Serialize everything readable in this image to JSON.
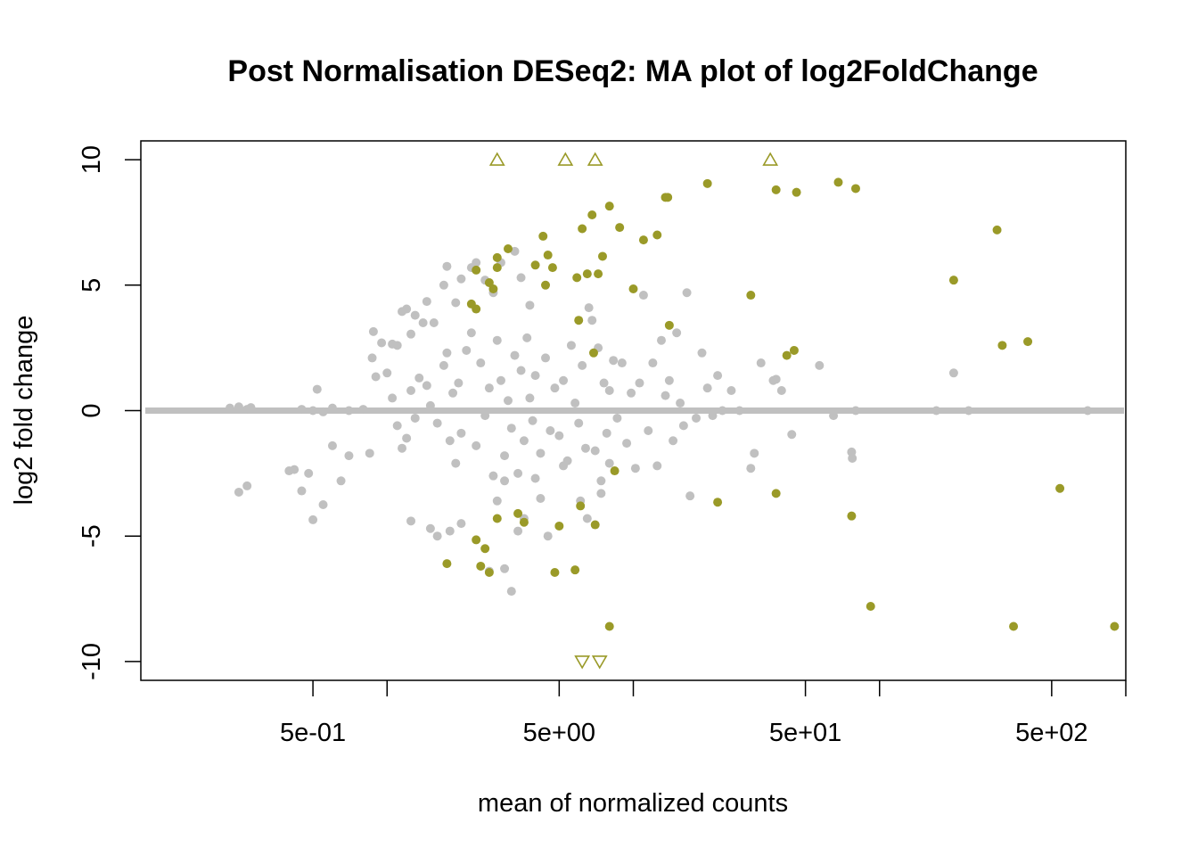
{
  "chart_data": {
    "type": "scatter",
    "title": "Post Normalisation DESeq2: MA plot of log2FoldChange",
    "xlabel": "mean of normalized counts",
    "ylabel": "log2 fold change",
    "x_scale": "log10",
    "xlim": [
      0.1,
      1000
    ],
    "ylim": [
      -10.75,
      10.75
    ],
    "x_ticks": [
      {
        "value": 0.5,
        "label": "5e-01"
      },
      {
        "value": 1,
        "label": ""
      },
      {
        "value": 5,
        "label": "5e+00"
      },
      {
        "value": 10,
        "label": ""
      },
      {
        "value": 50,
        "label": "5e+01"
      },
      {
        "value": 100,
        "label": ""
      },
      {
        "value": 500,
        "label": "5e+02"
      },
      {
        "value": 1000,
        "label": ""
      }
    ],
    "y_ticks": [
      {
        "value": 10,
        "label": "10"
      },
      {
        "value": 5,
        "label": "5"
      },
      {
        "value": 0,
        "label": "0"
      },
      {
        "value": -5,
        "label": "-5"
      },
      {
        "value": -10,
        "label": "-10"
      }
    ],
    "grid": false,
    "colors": {
      "not_significant": "#c0c0c0",
      "significant": "#9a9a28",
      "hline": "#c0c0c0"
    },
    "reference_line_y": 0,
    "series": [
      {
        "significance": "not_significant",
        "marker": "dot",
        "points": [
          [
            0.23,
            0.1
          ],
          [
            0.25,
            0.15
          ],
          [
            0.27,
            0.05
          ],
          [
            0.28,
            0.12
          ],
          [
            0.45,
            0.05
          ],
          [
            0.5,
            0.0
          ],
          [
            0.55,
            -0.05
          ],
          [
            0.6,
            0.1
          ],
          [
            0.7,
            0.0
          ],
          [
            0.8,
            0.05
          ],
          [
            0.52,
            0.85
          ],
          [
            0.48,
            -2.5
          ],
          [
            0.42,
            -2.35
          ],
          [
            0.45,
            -3.2
          ],
          [
            0.4,
            -2.4
          ],
          [
            0.25,
            -3.25
          ],
          [
            0.27,
            -3.0
          ],
          [
            0.5,
            -4.35
          ],
          [
            0.55,
            -3.75
          ],
          [
            0.6,
            -1.4
          ],
          [
            0.65,
            -2.8
          ],
          [
            0.7,
            -1.8
          ],
          [
            0.85,
            -1.7
          ],
          [
            0.9,
            1.35
          ],
          [
            0.95,
            2.7
          ],
          [
            0.88,
            3.15
          ],
          [
            0.87,
            2.1
          ],
          [
            1.05,
            2.65
          ],
          [
            1.1,
            2.6
          ],
          [
            1.15,
            3.95
          ],
          [
            1.2,
            4.05
          ],
          [
            1.25,
            3.05
          ],
          [
            1.3,
            3.8
          ],
          [
            1.4,
            3.5
          ],
          [
            1.45,
            4.35
          ],
          [
            1.55,
            3.5
          ],
          [
            1.75,
            5.75
          ],
          [
            1.7,
            5.0
          ],
          [
            1.9,
            4.3
          ],
          [
            2.0,
            5.25
          ],
          [
            2.2,
            5.7
          ],
          [
            2.3,
            5.9
          ],
          [
            2.5,
            5.2
          ],
          [
            2.7,
            4.7
          ],
          [
            2.9,
            5.9
          ],
          [
            3.3,
            6.35
          ],
          [
            3.5,
            5.3
          ],
          [
            3.8,
            4.2
          ],
          [
            1.0,
            1.5
          ],
          [
            1.05,
            0.5
          ],
          [
            1.1,
            -0.6
          ],
          [
            1.2,
            -1.1
          ],
          [
            1.3,
            -0.3
          ],
          [
            1.15,
            -1.5
          ],
          [
            1.25,
            0.8
          ],
          [
            1.35,
            1.3
          ],
          [
            1.45,
            1.0
          ],
          [
            1.5,
            0.2
          ],
          [
            1.6,
            -0.5
          ],
          [
            1.7,
            1.8
          ],
          [
            1.75,
            2.3
          ],
          [
            1.8,
            -1.2
          ],
          [
            1.85,
            0.7
          ],
          [
            1.9,
            -2.1
          ],
          [
            1.95,
            1.1
          ],
          [
            2.0,
            -0.9
          ],
          [
            2.1,
            2.4
          ],
          [
            2.2,
            3.1
          ],
          [
            2.3,
            -1.4
          ],
          [
            2.4,
            1.9
          ],
          [
            2.5,
            -0.2
          ],
          [
            2.6,
            0.9
          ],
          [
            2.7,
            -2.6
          ],
          [
            2.8,
            2.8
          ],
          [
            2.9,
            1.2
          ],
          [
            3.0,
            -1.8
          ],
          [
            3.1,
            0.4
          ],
          [
            3.2,
            -0.7
          ],
          [
            3.3,
            2.2
          ],
          [
            3.4,
            -2.5
          ],
          [
            3.5,
            1.6
          ],
          [
            3.6,
            -1.2
          ],
          [
            3.7,
            2.9
          ],
          [
            3.8,
            0.5
          ],
          [
            3.9,
            -0.4
          ],
          [
            4.0,
            1.4
          ],
          [
            4.2,
            -1.7
          ],
          [
            4.4,
            2.1
          ],
          [
            4.6,
            -0.8
          ],
          [
            4.8,
            0.9
          ],
          [
            5.0,
            -1.0
          ],
          [
            5.2,
            1.2
          ],
          [
            5.4,
            -2.0
          ],
          [
            5.6,
            2.6
          ],
          [
            5.8,
            0.3
          ],
          [
            6.0,
            -0.5
          ],
          [
            6.2,
            1.8
          ],
          [
            6.4,
            -1.5
          ],
          [
            6.6,
            4.1
          ],
          [
            6.8,
            3.6
          ],
          [
            7.0,
            -1.6
          ],
          [
            7.2,
            2.5
          ],
          [
            7.4,
            -2.8
          ],
          [
            7.6,
            1.1
          ],
          [
            7.8,
            -0.9
          ],
          [
            8.0,
            0.8
          ],
          [
            8.3,
            2.0
          ],
          [
            8.6,
            -0.3
          ],
          [
            9.0,
            1.9
          ],
          [
            9.4,
            -1.3
          ],
          [
            9.8,
            0.7
          ],
          [
            10.2,
            -2.3
          ],
          [
            10.6,
            1.1
          ],
          [
            11.0,
            4.6
          ],
          [
            11.5,
            -0.8
          ],
          [
            12.0,
            1.9
          ],
          [
            12.5,
            -2.2
          ],
          [
            13.0,
            2.8
          ],
          [
            13.5,
            0.6
          ],
          [
            14.0,
            1.2
          ],
          [
            14.5,
            -1.2
          ],
          [
            15.0,
            3.1
          ],
          [
            15.5,
            0.3
          ],
          [
            16.0,
            -0.6
          ],
          [
            16.5,
            4.7
          ],
          [
            17.0,
            -3.4
          ],
          [
            18.0,
            -0.3
          ],
          [
            19.0,
            2.3
          ],
          [
            20.0,
            0.9
          ],
          [
            21.0,
            -0.2
          ],
          [
            22.0,
            1.4
          ],
          [
            23.0,
            0.0
          ],
          [
            25.0,
            0.8
          ],
          [
            27.0,
            0.0
          ],
          [
            30.0,
            -2.3
          ],
          [
            31.0,
            -1.7
          ],
          [
            33.0,
            1.9
          ],
          [
            37.0,
            1.2
          ],
          [
            38.0,
            1.25
          ],
          [
            40.0,
            0.8
          ],
          [
            44.0,
            -0.95
          ],
          [
            57.0,
            1.8
          ],
          [
            65.0,
            -0.2
          ],
          [
            77.0,
            -1.65
          ],
          [
            77.5,
            -1.9
          ],
          [
            80.0,
            0.0
          ],
          [
            170.0,
            0.0
          ],
          [
            200.0,
            1.5
          ],
          [
            230.0,
            0.0
          ],
          [
            700.0,
            0.0
          ],
          [
            2.0,
            -4.5
          ],
          [
            1.5,
            -4.7
          ],
          [
            1.8,
            -4.8
          ],
          [
            1.25,
            -4.4
          ],
          [
            2.6,
            -6.4
          ],
          [
            3.0,
            -6.3
          ],
          [
            3.2,
            -7.2
          ],
          [
            3.4,
            -4.8
          ],
          [
            3.6,
            -4.3
          ],
          [
            4.2,
            -3.5
          ],
          [
            4.0,
            -2.7
          ],
          [
            4.5,
            -5.0
          ],
          [
            6.1,
            -3.6
          ],
          [
            6.5,
            -4.3
          ],
          [
            7.4,
            -3.3
          ],
          [
            1.6,
            -5.0
          ],
          [
            2.8,
            -3.6
          ],
          [
            3.0,
            -2.8
          ],
          [
            5.2,
            -2.2
          ],
          [
            8.0,
            -2.1
          ]
        ]
      },
      {
        "significance": "significant",
        "marker": "dot",
        "points": [
          [
            2.3,
            5.6
          ],
          [
            2.8,
            6.1
          ],
          [
            2.8,
            5.7
          ],
          [
            2.7,
            4.85
          ],
          [
            3.1,
            6.45
          ],
          [
            2.6,
            5.1
          ],
          [
            2.2,
            4.25
          ],
          [
            2.3,
            4.05
          ],
          [
            4.3,
            6.95
          ],
          [
            4.5,
            6.2
          ],
          [
            4.7,
            5.7
          ],
          [
            4.0,
            5.8
          ],
          [
            4.4,
            5.0
          ],
          [
            5.9,
            5.3
          ],
          [
            6.2,
            7.25
          ],
          [
            6.8,
            7.8
          ],
          [
            6.5,
            5.45
          ],
          [
            7.2,
            5.45
          ],
          [
            7.5,
            6.15
          ],
          [
            8.0,
            8.15
          ],
          [
            8.8,
            7.3
          ],
          [
            10.0,
            4.85
          ],
          [
            11.0,
            6.8
          ],
          [
            12.5,
            7.0
          ],
          [
            13.5,
            8.5
          ],
          [
            13.8,
            8.5
          ],
          [
            20.0,
            9.05
          ],
          [
            30.0,
            4.6
          ],
          [
            38.0,
            8.8
          ],
          [
            46.0,
            8.7
          ],
          [
            68.0,
            9.1
          ],
          [
            80.0,
            8.85
          ],
          [
            42.0,
            2.2
          ],
          [
            45.0,
            2.4
          ],
          [
            14.0,
            3.4
          ],
          [
            6.9,
            2.3
          ],
          [
            6.0,
            3.6
          ],
          [
            8.4,
            -2.4
          ],
          [
            5.0,
            -4.6
          ],
          [
            6.1,
            -3.8
          ],
          [
            7.0,
            -4.55
          ],
          [
            4.8,
            -6.45
          ],
          [
            5.8,
            -6.35
          ],
          [
            3.4,
            -4.1
          ],
          [
            3.6,
            -4.45
          ],
          [
            2.8,
            -4.3
          ],
          [
            2.3,
            -5.15
          ],
          [
            2.5,
            -5.5
          ],
          [
            2.6,
            -6.45
          ],
          [
            2.4,
            -6.2
          ],
          [
            1.75,
            -6.1
          ],
          [
            8.0,
            -8.6
          ],
          [
            22.0,
            -3.65
          ],
          [
            38.0,
            -3.3
          ],
          [
            77.0,
            -4.2
          ],
          [
            92.0,
            -7.8
          ],
          [
            200.0,
            5.2
          ],
          [
            300.0,
            7.2
          ],
          [
            315.0,
            2.6
          ],
          [
            400.0,
            2.75
          ],
          [
            540.0,
            -3.1
          ],
          [
            350.0,
            -8.6
          ],
          [
            900.0,
            -8.6
          ]
        ]
      },
      {
        "significance": "significant",
        "marker": "triangle-up",
        "points": [
          [
            2.8,
            10
          ],
          [
            5.3,
            10
          ],
          [
            7.0,
            10
          ],
          [
            36.0,
            10
          ]
        ]
      },
      {
        "significance": "significant",
        "marker": "triangle-down",
        "points": [
          [
            6.2,
            -10
          ],
          [
            7.3,
            -10
          ]
        ]
      }
    ]
  }
}
